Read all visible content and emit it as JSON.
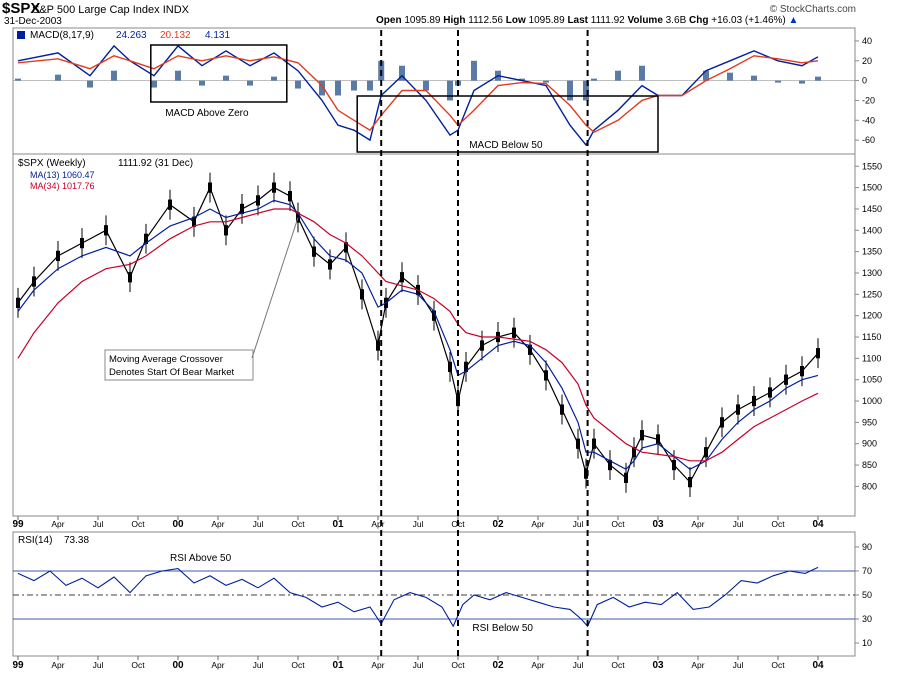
{
  "header": {
    "symbol": "$SPX",
    "name": "S&P 500 Large Cap Index",
    "exchange": "INDX",
    "date": "31-Dec-2003",
    "watermark": "© StockCharts.com",
    "open_label": "Open",
    "open": "1095.89",
    "high_label": "High",
    "high": "1112.56",
    "low_label": "Low",
    "low": "1095.89",
    "last_label": "Last",
    "last": "1111.92",
    "volume_label": "Volume",
    "volume": "3.6B",
    "chg_label": "Chg",
    "chg": "+16.03 (+1.46%)",
    "chg_arrow": "▲"
  },
  "chart_data": [
    {
      "type": "line",
      "panel": "MACD",
      "legend": {
        "name": "MACD(8,17,9)",
        "macd": "24.263",
        "signal": "20.132",
        "histogram": "4.131"
      },
      "ylim": [
        -70,
        45
      ],
      "yticks": [
        40,
        20,
        0,
        -20,
        -40,
        -60
      ],
      "x": [
        1999.0,
        1999.25,
        1999.45,
        1999.6,
        1999.7,
        1999.85,
        2000.0,
        2000.15,
        2000.3,
        2000.45,
        2000.6,
        2000.75,
        2000.9,
        2001.0,
        2001.1,
        2001.2,
        2001.27,
        2001.4,
        2001.55,
        2001.7,
        2001.75,
        2001.85,
        2002.0,
        2002.15,
        2002.3,
        2002.45,
        2002.55,
        2002.6,
        2002.75,
        2002.9,
        2003.0,
        2003.15,
        2003.3,
        2003.45,
        2003.6,
        2003.75,
        2003.9,
        2004.0
      ],
      "series": [
        {
          "name": "MACD",
          "color": "#001f9e",
          "values": [
            20,
            28,
            5,
            35,
            20,
            5,
            35,
            15,
            30,
            15,
            28,
            10,
            -20,
            -45,
            -50,
            -60,
            -15,
            5,
            -20,
            -55,
            -50,
            -10,
            5,
            0,
            -5,
            -45,
            -65,
            -50,
            -30,
            -5,
            -15,
            -15,
            10,
            20,
            30,
            20,
            15,
            24
          ]
        },
        {
          "name": "Signal",
          "color": "#e03c1e",
          "values": [
            18,
            22,
            12,
            25,
            20,
            12,
            25,
            20,
            25,
            20,
            24,
            18,
            -5,
            -30,
            -40,
            -50,
            -35,
            -10,
            -10,
            -35,
            -45,
            -30,
            -5,
            -2,
            -3,
            -25,
            -45,
            -52,
            -40,
            -20,
            -15,
            -15,
            0,
            12,
            25,
            22,
            18,
            20
          ]
        }
      ],
      "annotations": [
        "MACD Above Zero",
        "MACD Below 50"
      ]
    },
    {
      "type": "line",
      "panel": "Price",
      "legend": {
        "name": "$SPX (Weekly)",
        "last": "1111.92 (31 Dec)",
        "ma13": "MA(13) 1060.47",
        "ma34": "MA(34) 1017.76"
      },
      "ylim": [
        740,
        1560
      ],
      "yticks": [
        1550,
        1500,
        1450,
        1400,
        1350,
        1300,
        1250,
        1200,
        1150,
        1100,
        1050,
        1000,
        950,
        900,
        850,
        800
      ],
      "xlabels": [
        "99",
        "Apr",
        "Jul",
        "Oct",
        "00",
        "Apr",
        "Jul",
        "Oct",
        "01",
        "Apr",
        "Jul",
        "Oct",
        "02",
        "Apr",
        "Jul",
        "Oct",
        "03",
        "Apr",
        "Jul",
        "Oct",
        "04"
      ],
      "x": [
        1999.0,
        1999.1,
        1999.25,
        1999.4,
        1999.55,
        1999.7,
        1999.8,
        1999.95,
        2000.1,
        2000.2,
        2000.3,
        2000.4,
        2000.5,
        2000.6,
        2000.7,
        2000.75,
        2000.85,
        2000.95,
        2001.05,
        2001.15,
        2001.25,
        2001.3,
        2001.4,
        2001.5,
        2001.6,
        2001.7,
        2001.75,
        2001.8,
        2001.9,
        2002.0,
        2002.1,
        2002.2,
        2002.3,
        2002.4,
        2002.5,
        2002.55,
        2002.6,
        2002.7,
        2002.8,
        2002.85,
        2002.9,
        2003.0,
        2003.1,
        2003.2,
        2003.3,
        2003.4,
        2003.5,
        2003.6,
        2003.7,
        2003.8,
        2003.9,
        2004.0
      ],
      "series": [
        {
          "name": "Price",
          "color": "#000000",
          "values": [
            1230,
            1280,
            1340,
            1370,
            1400,
            1290,
            1380,
            1460,
            1420,
            1500,
            1400,
            1450,
            1470,
            1500,
            1480,
            1430,
            1350,
            1320,
            1360,
            1250,
            1130,
            1230,
            1290,
            1260,
            1200,
            1080,
            1000,
            1080,
            1130,
            1150,
            1160,
            1120,
            1060,
            980,
            900,
            830,
            900,
            850,
            820,
            880,
            920,
            910,
            850,
            810,
            880,
            950,
            980,
            1000,
            1020,
            1050,
            1070,
            1112
          ]
        },
        {
          "name": "MA(13)",
          "color": "#001f9e",
          "values": [
            1210,
            1260,
            1310,
            1340,
            1360,
            1340,
            1370,
            1410,
            1430,
            1450,
            1430,
            1440,
            1450,
            1470,
            1460,
            1440,
            1380,
            1340,
            1330,
            1300,
            1220,
            1230,
            1260,
            1250,
            1210,
            1120,
            1060,
            1070,
            1100,
            1130,
            1140,
            1130,
            1090,
            1030,
            950,
            880,
            880,
            860,
            840,
            860,
            890,
            900,
            870,
            840,
            860,
            910,
            950,
            980,
            1000,
            1030,
            1050,
            1060
          ]
        },
        {
          "name": "MA(34)",
          "color": "#c8002a",
          "values": [
            1100,
            1160,
            1230,
            1280,
            1310,
            1320,
            1340,
            1380,
            1410,
            1420,
            1420,
            1430,
            1440,
            1450,
            1450,
            1440,
            1420,
            1390,
            1370,
            1340,
            1300,
            1280,
            1270,
            1260,
            1240,
            1210,
            1180,
            1160,
            1150,
            1150,
            1145,
            1140,
            1120,
            1090,
            1040,
            990,
            960,
            930,
            900,
            890,
            880,
            875,
            870,
            860,
            860,
            880,
            910,
            940,
            960,
            980,
            1000,
            1018
          ]
        }
      ],
      "annotations": [
        "Moving Average Crossover",
        "Denotes Start Of Bear Market"
      ]
    },
    {
      "type": "line",
      "panel": "RSI",
      "legend": {
        "name": "RSI(14)",
        "value": "73.38"
      },
      "ylim": [
        0,
        100
      ],
      "yticks": [
        90,
        70,
        50,
        30,
        10
      ],
      "reference_lines": [
        70,
        50,
        30
      ],
      "x": [
        1999.0,
        1999.1,
        1999.2,
        1999.3,
        1999.4,
        1999.5,
        1999.6,
        1999.7,
        1999.8,
        1999.9,
        2000.0,
        2000.1,
        2000.2,
        2000.3,
        2000.4,
        2000.5,
        2000.6,
        2000.7,
        2000.8,
        2000.9,
        2001.0,
        2001.1,
        2001.2,
        2001.27,
        2001.35,
        2001.45,
        2001.55,
        2001.65,
        2001.72,
        2001.78,
        2001.85,
        2001.95,
        2002.05,
        2002.15,
        2002.25,
        2002.35,
        2002.45,
        2002.52,
        2002.56,
        2002.62,
        2002.72,
        2002.82,
        2002.92,
        2003.02,
        2003.12,
        2003.22,
        2003.32,
        2003.42,
        2003.52,
        2003.62,
        2003.72,
        2003.82,
        2003.92,
        2004.0
      ],
      "series": [
        {
          "name": "RSI",
          "color": "#001f9e",
          "values": [
            68,
            62,
            70,
            58,
            64,
            56,
            65,
            52,
            66,
            70,
            72,
            60,
            66,
            58,
            63,
            56,
            64,
            52,
            48,
            40,
            44,
            36,
            40,
            26,
            46,
            52,
            48,
            40,
            24,
            42,
            50,
            46,
            52,
            48,
            44,
            40,
            38,
            30,
            24,
            42,
            48,
            40,
            44,
            42,
            52,
            38,
            40,
            50,
            62,
            60,
            66,
            70,
            68,
            73
          ]
        }
      ],
      "annotations": [
        "RSI Above 50",
        "RSI Below 50"
      ]
    }
  ]
}
